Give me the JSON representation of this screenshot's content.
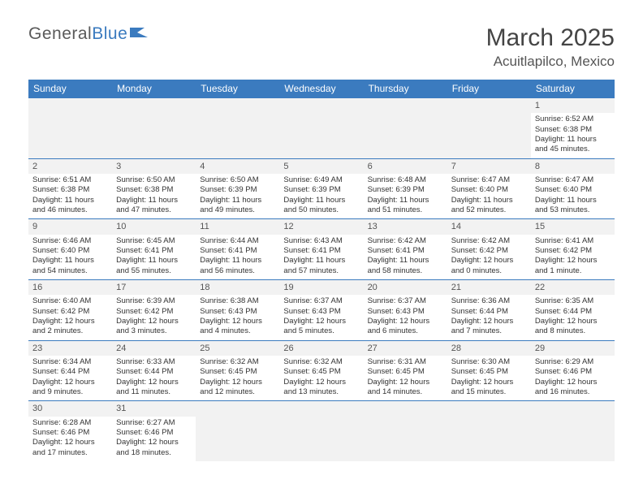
{
  "logo": {
    "text1": "General",
    "text2": "Blue"
  },
  "title": "March 2025",
  "location": "Acuitlapilco, Mexico",
  "daynames": [
    "Sunday",
    "Monday",
    "Tuesday",
    "Wednesday",
    "Thursday",
    "Friday",
    "Saturday"
  ],
  "colors": {
    "header_bg": "#3b7bbf",
    "header_text": "#ffffff",
    "grid_line": "#3b7bbf",
    "daynum_bg": "#f2f2f2",
    "text": "#333333",
    "title_color": "#444444"
  },
  "layout": {
    "columns": 7,
    "rows": 6,
    "blank_leading": 6
  },
  "days": [
    {
      "n": "1",
      "sr": "Sunrise: 6:52 AM",
      "ss": "Sunset: 6:38 PM",
      "dl1": "Daylight: 11 hours",
      "dl2": "and 45 minutes."
    },
    {
      "n": "2",
      "sr": "Sunrise: 6:51 AM",
      "ss": "Sunset: 6:38 PM",
      "dl1": "Daylight: 11 hours",
      "dl2": "and 46 minutes."
    },
    {
      "n": "3",
      "sr": "Sunrise: 6:50 AM",
      "ss": "Sunset: 6:38 PM",
      "dl1": "Daylight: 11 hours",
      "dl2": "and 47 minutes."
    },
    {
      "n": "4",
      "sr": "Sunrise: 6:50 AM",
      "ss": "Sunset: 6:39 PM",
      "dl1": "Daylight: 11 hours",
      "dl2": "and 49 minutes."
    },
    {
      "n": "5",
      "sr": "Sunrise: 6:49 AM",
      "ss": "Sunset: 6:39 PM",
      "dl1": "Daylight: 11 hours",
      "dl2": "and 50 minutes."
    },
    {
      "n": "6",
      "sr": "Sunrise: 6:48 AM",
      "ss": "Sunset: 6:39 PM",
      "dl1": "Daylight: 11 hours",
      "dl2": "and 51 minutes."
    },
    {
      "n": "7",
      "sr": "Sunrise: 6:47 AM",
      "ss": "Sunset: 6:40 PM",
      "dl1": "Daylight: 11 hours",
      "dl2": "and 52 minutes."
    },
    {
      "n": "8",
      "sr": "Sunrise: 6:47 AM",
      "ss": "Sunset: 6:40 PM",
      "dl1": "Daylight: 11 hours",
      "dl2": "and 53 minutes."
    },
    {
      "n": "9",
      "sr": "Sunrise: 6:46 AM",
      "ss": "Sunset: 6:40 PM",
      "dl1": "Daylight: 11 hours",
      "dl2": "and 54 minutes."
    },
    {
      "n": "10",
      "sr": "Sunrise: 6:45 AM",
      "ss": "Sunset: 6:41 PM",
      "dl1": "Daylight: 11 hours",
      "dl2": "and 55 minutes."
    },
    {
      "n": "11",
      "sr": "Sunrise: 6:44 AM",
      "ss": "Sunset: 6:41 PM",
      "dl1": "Daylight: 11 hours",
      "dl2": "and 56 minutes."
    },
    {
      "n": "12",
      "sr": "Sunrise: 6:43 AM",
      "ss": "Sunset: 6:41 PM",
      "dl1": "Daylight: 11 hours",
      "dl2": "and 57 minutes."
    },
    {
      "n": "13",
      "sr": "Sunrise: 6:42 AM",
      "ss": "Sunset: 6:41 PM",
      "dl1": "Daylight: 11 hours",
      "dl2": "and 58 minutes."
    },
    {
      "n": "14",
      "sr": "Sunrise: 6:42 AM",
      "ss": "Sunset: 6:42 PM",
      "dl1": "Daylight: 12 hours",
      "dl2": "and 0 minutes."
    },
    {
      "n": "15",
      "sr": "Sunrise: 6:41 AM",
      "ss": "Sunset: 6:42 PM",
      "dl1": "Daylight: 12 hours",
      "dl2": "and 1 minute."
    },
    {
      "n": "16",
      "sr": "Sunrise: 6:40 AM",
      "ss": "Sunset: 6:42 PM",
      "dl1": "Daylight: 12 hours",
      "dl2": "and 2 minutes."
    },
    {
      "n": "17",
      "sr": "Sunrise: 6:39 AM",
      "ss": "Sunset: 6:42 PM",
      "dl1": "Daylight: 12 hours",
      "dl2": "and 3 minutes."
    },
    {
      "n": "18",
      "sr": "Sunrise: 6:38 AM",
      "ss": "Sunset: 6:43 PM",
      "dl1": "Daylight: 12 hours",
      "dl2": "and 4 minutes."
    },
    {
      "n": "19",
      "sr": "Sunrise: 6:37 AM",
      "ss": "Sunset: 6:43 PM",
      "dl1": "Daylight: 12 hours",
      "dl2": "and 5 minutes."
    },
    {
      "n": "20",
      "sr": "Sunrise: 6:37 AM",
      "ss": "Sunset: 6:43 PM",
      "dl1": "Daylight: 12 hours",
      "dl2": "and 6 minutes."
    },
    {
      "n": "21",
      "sr": "Sunrise: 6:36 AM",
      "ss": "Sunset: 6:44 PM",
      "dl1": "Daylight: 12 hours",
      "dl2": "and 7 minutes."
    },
    {
      "n": "22",
      "sr": "Sunrise: 6:35 AM",
      "ss": "Sunset: 6:44 PM",
      "dl1": "Daylight: 12 hours",
      "dl2": "and 8 minutes."
    },
    {
      "n": "23",
      "sr": "Sunrise: 6:34 AM",
      "ss": "Sunset: 6:44 PM",
      "dl1": "Daylight: 12 hours",
      "dl2": "and 9 minutes."
    },
    {
      "n": "24",
      "sr": "Sunrise: 6:33 AM",
      "ss": "Sunset: 6:44 PM",
      "dl1": "Daylight: 12 hours",
      "dl2": "and 11 minutes."
    },
    {
      "n": "25",
      "sr": "Sunrise: 6:32 AM",
      "ss": "Sunset: 6:45 PM",
      "dl1": "Daylight: 12 hours",
      "dl2": "and 12 minutes."
    },
    {
      "n": "26",
      "sr": "Sunrise: 6:32 AM",
      "ss": "Sunset: 6:45 PM",
      "dl1": "Daylight: 12 hours",
      "dl2": "and 13 minutes."
    },
    {
      "n": "27",
      "sr": "Sunrise: 6:31 AM",
      "ss": "Sunset: 6:45 PM",
      "dl1": "Daylight: 12 hours",
      "dl2": "and 14 minutes."
    },
    {
      "n": "28",
      "sr": "Sunrise: 6:30 AM",
      "ss": "Sunset: 6:45 PM",
      "dl1": "Daylight: 12 hours",
      "dl2": "and 15 minutes."
    },
    {
      "n": "29",
      "sr": "Sunrise: 6:29 AM",
      "ss": "Sunset: 6:46 PM",
      "dl1": "Daylight: 12 hours",
      "dl2": "and 16 minutes."
    },
    {
      "n": "30",
      "sr": "Sunrise: 6:28 AM",
      "ss": "Sunset: 6:46 PM",
      "dl1": "Daylight: 12 hours",
      "dl2": "and 17 minutes."
    },
    {
      "n": "31",
      "sr": "Sunrise: 6:27 AM",
      "ss": "Sunset: 6:46 PM",
      "dl1": "Daylight: 12 hours",
      "dl2": "and 18 minutes."
    }
  ]
}
